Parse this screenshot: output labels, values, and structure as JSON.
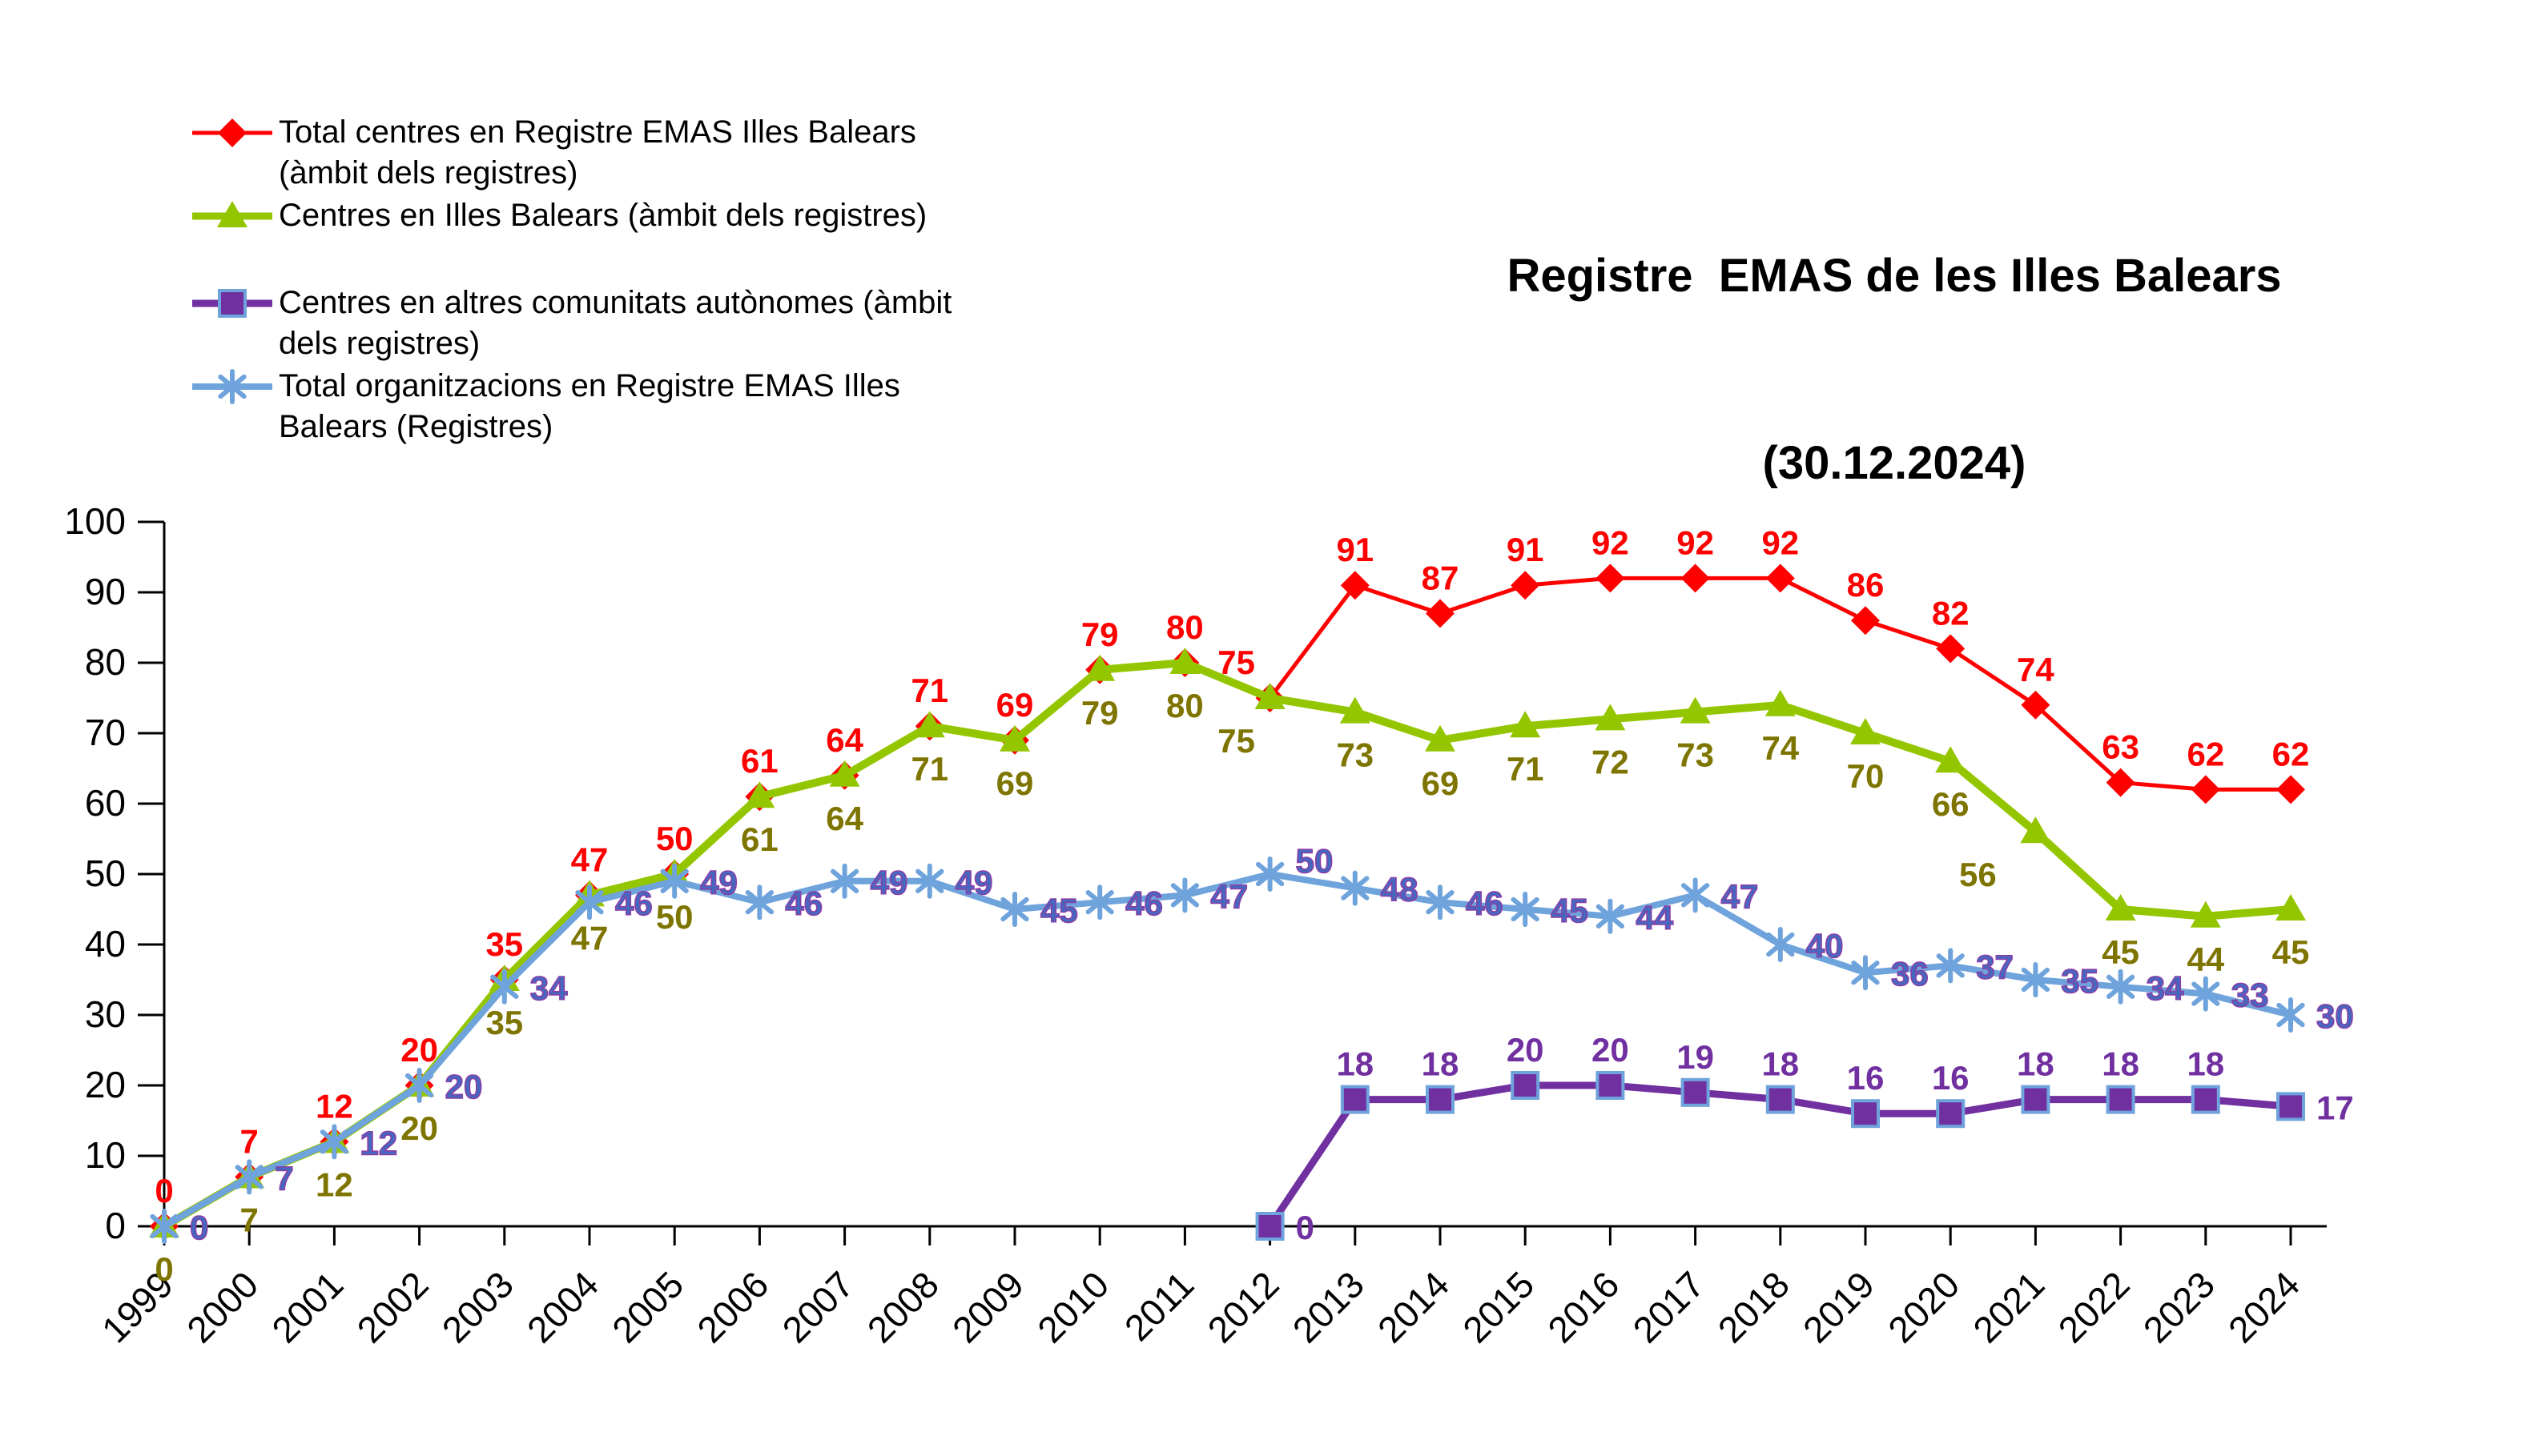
{
  "title": {
    "line1": "Registre  EMAS de les Illes Balears",
    "line2": "(30.12.2024)"
  },
  "chart_data": {
    "type": "line",
    "title": "Registre EMAS de les Illes Balears (30.12.2024)",
    "x": [
      "1999",
      "2000",
      "2001",
      "2002",
      "2003",
      "2004",
      "2005",
      "2006",
      "2007",
      "2008",
      "2009",
      "2010",
      "2011",
      "2012",
      "2013",
      "2014",
      "2015",
      "2016",
      "2017",
      "2018",
      "2019",
      "2020",
      "2021",
      "2022",
      "2023",
      "2024"
    ],
    "ylim": [
      0,
      100
    ],
    "ytick_step": 10,
    "grid": false,
    "legend_position": "top-left",
    "axis_color": "#000000",
    "series": [
      {
        "name": "Total centres en Registre EMAS Illes Balears (àmbit dels registres)",
        "legend_lines": [
          "Total centres en Registre EMAS Illes Balears",
          "(àmbit dels registres)"
        ],
        "marker": "diamond",
        "color": "#FF0000",
        "label_color": "#FF0000",
        "label_pos": "above",
        "line_width": 5,
        "values": [
          0,
          7,
          12,
          20,
          35,
          47,
          50,
          61,
          64,
          71,
          69,
          79,
          80,
          75,
          91,
          87,
          91,
          92,
          92,
          92,
          86,
          82,
          74,
          63,
          62,
          62
        ]
      },
      {
        "name": "Centres en Illes Balears (àmbit dels registres)",
        "legend_lines": [
          "Centres en Illes Balears (àmbit dels registres)"
        ],
        "marker": "triangle",
        "color": "#94C600",
        "label_color": "#7E7400",
        "label_pos": "below",
        "line_width": 10,
        "values": [
          0,
          7,
          12,
          20,
          35,
          47,
          50,
          61,
          64,
          71,
          69,
          79,
          80,
          75,
          73,
          69,
          71,
          72,
          73,
          74,
          70,
          66,
          56,
          45,
          44,
          45
        ]
      },
      {
        "name": "Centres en altres comunitats autònomes (àmbit dels registres)",
        "legend_lines": [
          "Centres en altres comunitats autònomes (àmbit",
          "dels registres)"
        ],
        "marker": "square",
        "color": "#7030A0",
        "marker_edge": "#6FA3DC",
        "label_color": "#7030A0",
        "label_pos": "above",
        "line_width": 9,
        "values": [
          null,
          null,
          null,
          null,
          null,
          null,
          null,
          null,
          null,
          null,
          null,
          null,
          null,
          0,
          18,
          18,
          20,
          20,
          19,
          18,
          16,
          16,
          18,
          18,
          18,
          17
        ]
      },
      {
        "name": "Total organitzacions en Registre EMAS Illes Balears (Registres)",
        "legend_lines": [
          "Total organitzacions en Registre EMAS Illes",
          "Balears (Registres)"
        ],
        "marker": "asterisk",
        "color": "#6FA3DC",
        "label_color": "#4468BE",
        "label_stroke": "#8B3FA8",
        "label_pos": "right",
        "line_width": 8,
        "values": [
          0,
          7,
          12,
          20,
          34,
          46,
          49,
          46,
          49,
          49,
          45,
          46,
          47,
          50,
          48,
          46,
          45,
          44,
          47,
          40,
          36,
          37,
          35,
          34,
          33,
          30
        ]
      }
    ]
  }
}
